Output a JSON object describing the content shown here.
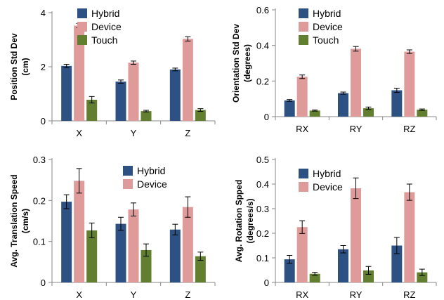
{
  "colors": {
    "Hybrid": "#2e5184",
    "Device": "#df9a9a",
    "Touch": "#617f2f"
  },
  "chart_data": [
    {
      "type": "bar",
      "ylabel": [
        "Position Std Dev",
        "(cm)"
      ],
      "categories": [
        "X",
        "Y",
        "Z"
      ],
      "ylim": [
        0,
        4
      ],
      "yticks": [
        "0",
        "2",
        "4"
      ],
      "ytick_values": [
        0,
        2,
        4
      ],
      "grid": false,
      "legend": "top-left",
      "legend_entries": [
        "Hybrid",
        "Device",
        "Touch"
      ],
      "series": [
        {
          "name": "Hybrid",
          "values": [
            2.03,
            1.45,
            1.9
          ],
          "errors": [
            0.06,
            0.06,
            0.05
          ]
        },
        {
          "name": "Device",
          "values": [
            3.52,
            2.15,
            3.03
          ],
          "errors": [
            0.08,
            0.06,
            0.08
          ]
        },
        {
          "name": "Touch",
          "values": [
            0.78,
            0.36,
            0.4
          ],
          "errors": [
            0.12,
            0.03,
            0.05
          ]
        }
      ]
    },
    {
      "type": "bar",
      "ylabel": [
        "Orientation Std Dev",
        "(degrees)"
      ],
      "categories": [
        "RX",
        "RY",
        "RZ"
      ],
      "ylim": [
        0,
        0.6
      ],
      "yticks": [
        "0",
        "0.2",
        "0.4",
        "0.6"
      ],
      "ytick_values": [
        0,
        0.2,
        0.4,
        0.6
      ],
      "grid": false,
      "legend": "top-left",
      "legend_entries": [
        "Hybrid",
        "Device",
        "Touch"
      ],
      "series": [
        {
          "name": "Hybrid",
          "values": [
            0.091,
            0.132,
            0.148
          ],
          "errors": [
            0.005,
            0.006,
            0.012
          ]
        },
        {
          "name": "Device",
          "values": [
            0.224,
            0.381,
            0.365
          ],
          "errors": [
            0.01,
            0.013,
            0.01
          ]
        },
        {
          "name": "Touch",
          "values": [
            0.034,
            0.047,
            0.039
          ],
          "errors": [
            0.003,
            0.007,
            0.004
          ]
        }
      ]
    },
    {
      "type": "bar",
      "ylabel": [
        "Avg. Translation Speed",
        "(cm/s)"
      ],
      "categories": [
        "X",
        "Y",
        "Z"
      ],
      "ylim": [
        0,
        0.3
      ],
      "yticks": [
        "0",
        "0.1",
        "0.2",
        "0.3"
      ],
      "ytick_values": [
        0,
        0.1,
        0.2,
        0.3
      ],
      "grid": false,
      "legend": "top-left",
      "legend_entries": [
        "Hybrid",
        "Device"
      ],
      "series": [
        {
          "name": "Hybrid",
          "values": [
            0.197,
            0.143,
            0.129
          ],
          "errors": [
            0.017,
            0.016,
            0.013
          ]
        },
        {
          "name": "Device",
          "values": [
            0.248,
            0.178,
            0.184
          ],
          "errors": [
            0.03,
            0.016,
            0.025
          ]
        },
        {
          "name": "Touch",
          "values": [
            0.127,
            0.079,
            0.064
          ],
          "errors": [
            0.018,
            0.015,
            0.01
          ]
        }
      ]
    },
    {
      "type": "bar",
      "ylabel": [
        "Avg. Rotation Spped",
        "(degrees/s)"
      ],
      "categories": [
        "RX",
        "RY",
        "RZ"
      ],
      "ylim": [
        0,
        0.5
      ],
      "yticks": [
        "0",
        "0.1",
        "0.2",
        "0.3",
        "0.4",
        "0.5"
      ],
      "ytick_values": [
        0,
        0.1,
        0.2,
        0.3,
        0.4,
        0.5
      ],
      "grid": false,
      "legend": "top-left",
      "legend_entries": [
        "Hybrid",
        "Device"
      ],
      "series": [
        {
          "name": "Hybrid",
          "values": [
            0.094,
            0.135,
            0.15
          ],
          "errors": [
            0.016,
            0.015,
            0.033
          ]
        },
        {
          "name": "Device",
          "values": [
            0.225,
            0.383,
            0.367
          ],
          "errors": [
            0.026,
            0.042,
            0.033
          ]
        },
        {
          "name": "Touch",
          "values": [
            0.035,
            0.049,
            0.041
          ],
          "errors": [
            0.006,
            0.016,
            0.013
          ]
        }
      ]
    }
  ]
}
